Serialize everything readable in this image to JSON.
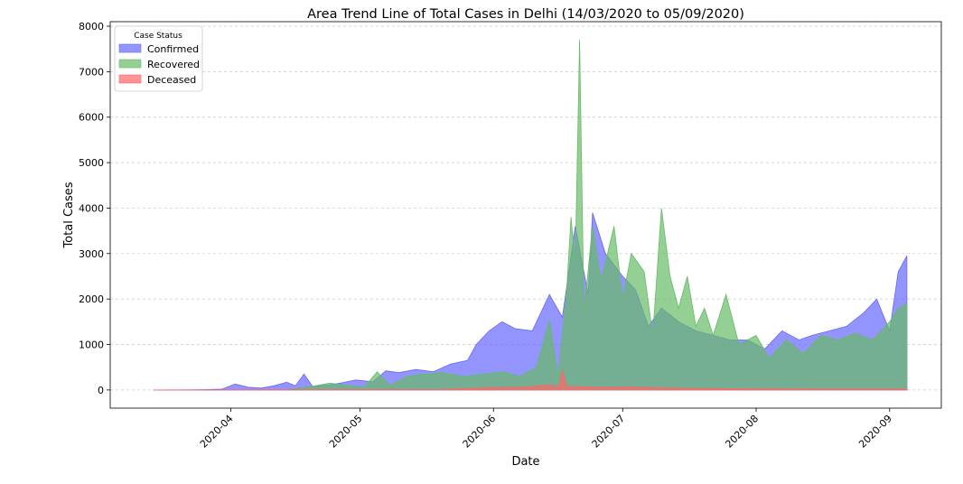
{
  "chart_data": {
    "type": "area",
    "title": "Area Trend Line of Total Cases in Delhi (14/03/2020 to 05/09/2020)",
    "xlabel": "Date",
    "ylabel": "Total Cases",
    "ylim": [
      -400,
      8100
    ],
    "xlim": [
      "2020-03-04",
      "2020-09-13"
    ],
    "y_ticks": [
      0,
      1000,
      2000,
      3000,
      4000,
      5000,
      6000,
      7000,
      8000
    ],
    "x_ticks": [
      "2020-04-01",
      "2020-05-01",
      "2020-06-01",
      "2020-07-01",
      "2020-08-01",
      "2020-09-01"
    ],
    "x_tick_labels": [
      "2020-04",
      "2020-05",
      "2020-06",
      "2020-07",
      "2020-08",
      "2020-09"
    ],
    "grid": "horizontal-dashed",
    "legend": {
      "title": "Case Status",
      "placement": "top-left"
    },
    "series": [
      {
        "name": "Confirmed",
        "color": "#6666ff",
        "points": [
          [
            "2020-03-14",
            0
          ],
          [
            "2020-03-22",
            2
          ],
          [
            "2020-03-26",
            8
          ],
          [
            "2020-03-30",
            20
          ],
          [
            "2020-04-02",
            130
          ],
          [
            "2020-04-05",
            60
          ],
          [
            "2020-04-08",
            40
          ],
          [
            "2020-04-11",
            90
          ],
          [
            "2020-04-14",
            170
          ],
          [
            "2020-04-16",
            90
          ],
          [
            "2020-04-18",
            350
          ],
          [
            "2020-04-20",
            80
          ],
          [
            "2020-04-24",
            110
          ],
          [
            "2020-04-27",
            160
          ],
          [
            "2020-04-30",
            220
          ],
          [
            "2020-05-04",
            180
          ],
          [
            "2020-05-07",
            420
          ],
          [
            "2020-05-10",
            380
          ],
          [
            "2020-05-14",
            450
          ],
          [
            "2020-05-18",
            400
          ],
          [
            "2020-05-22",
            570
          ],
          [
            "2020-05-26",
            650
          ],
          [
            "2020-05-28",
            1000
          ],
          [
            "2020-05-31",
            1300
          ],
          [
            "2020-06-03",
            1500
          ],
          [
            "2020-06-06",
            1350
          ],
          [
            "2020-06-10",
            1300
          ],
          [
            "2020-06-14",
            2100
          ],
          [
            "2020-06-17",
            1600
          ],
          [
            "2020-06-20",
            3600
          ],
          [
            "2020-06-23",
            2100
          ],
          [
            "2020-06-24",
            3900
          ],
          [
            "2020-06-27",
            3000
          ],
          [
            "2020-07-01",
            2500
          ],
          [
            "2020-07-04",
            2200
          ],
          [
            "2020-07-07",
            1400
          ],
          [
            "2020-07-10",
            1800
          ],
          [
            "2020-07-14",
            1500
          ],
          [
            "2020-07-18",
            1300
          ],
          [
            "2020-07-22",
            1200
          ],
          [
            "2020-07-26",
            1100
          ],
          [
            "2020-07-30",
            1100
          ],
          [
            "2020-08-03",
            900
          ],
          [
            "2020-08-07",
            1300
          ],
          [
            "2020-08-11",
            1100
          ],
          [
            "2020-08-14",
            1200
          ],
          [
            "2020-08-18",
            1300
          ],
          [
            "2020-08-22",
            1400
          ],
          [
            "2020-08-26",
            1700
          ],
          [
            "2020-08-29",
            2000
          ],
          [
            "2020-09-01",
            1300
          ],
          [
            "2020-09-03",
            2600
          ],
          [
            "2020-09-05",
            2950
          ]
        ]
      },
      {
        "name": "Recovered",
        "color": "#66bb66",
        "points": [
          [
            "2020-03-14",
            0
          ],
          [
            "2020-04-14",
            0
          ],
          [
            "2020-04-20",
            80
          ],
          [
            "2020-04-24",
            150
          ],
          [
            "2020-04-28",
            100
          ],
          [
            "2020-05-02",
            60
          ],
          [
            "2020-05-05",
            400
          ],
          [
            "2020-05-08",
            100
          ],
          [
            "2020-05-12",
            300
          ],
          [
            "2020-05-16",
            350
          ],
          [
            "2020-05-20",
            380
          ],
          [
            "2020-05-25",
            300
          ],
          [
            "2020-05-30",
            350
          ],
          [
            "2020-06-03",
            400
          ],
          [
            "2020-06-07",
            300
          ],
          [
            "2020-06-11",
            500
          ],
          [
            "2020-06-14",
            1550
          ],
          [
            "2020-06-16",
            300
          ],
          [
            "2020-06-18",
            2200
          ],
          [
            "2020-06-19",
            3800
          ],
          [
            "2020-06-20",
            2800
          ],
          [
            "2020-06-21",
            7700
          ],
          [
            "2020-06-22",
            1700
          ],
          [
            "2020-06-24",
            3600
          ],
          [
            "2020-06-26",
            2400
          ],
          [
            "2020-06-29",
            3600
          ],
          [
            "2020-07-01",
            2000
          ],
          [
            "2020-07-03",
            3000
          ],
          [
            "2020-07-06",
            2600
          ],
          [
            "2020-07-08",
            1200
          ],
          [
            "2020-07-10",
            4000
          ],
          [
            "2020-07-12",
            2500
          ],
          [
            "2020-07-14",
            1800
          ],
          [
            "2020-07-16",
            2500
          ],
          [
            "2020-07-18",
            1400
          ],
          [
            "2020-07-20",
            1800
          ],
          [
            "2020-07-22",
            1200
          ],
          [
            "2020-07-25",
            2100
          ],
          [
            "2020-07-28",
            1000
          ],
          [
            "2020-08-01",
            1200
          ],
          [
            "2020-08-04",
            700
          ],
          [
            "2020-08-08",
            1100
          ],
          [
            "2020-08-12",
            800
          ],
          [
            "2020-08-16",
            1200
          ],
          [
            "2020-08-20",
            1100
          ],
          [
            "2020-08-24",
            1250
          ],
          [
            "2020-08-28",
            1100
          ],
          [
            "2020-09-01",
            1500
          ],
          [
            "2020-09-03",
            1800
          ],
          [
            "2020-09-05",
            1900
          ]
        ]
      },
      {
        "name": "Deceased",
        "color": "#ff6666",
        "points": [
          [
            "2020-03-14",
            0
          ],
          [
            "2020-05-20",
            10
          ],
          [
            "2020-05-31",
            50
          ],
          [
            "2020-06-08",
            60
          ],
          [
            "2020-06-14",
            110
          ],
          [
            "2020-06-16",
            60
          ],
          [
            "2020-06-17",
            430
          ],
          [
            "2020-06-18",
            80
          ],
          [
            "2020-06-24",
            65
          ],
          [
            "2020-07-04",
            60
          ],
          [
            "2020-07-16",
            35
          ],
          [
            "2020-08-01",
            25
          ],
          [
            "2020-08-16",
            20
          ],
          [
            "2020-09-05",
            20
          ]
        ]
      }
    ]
  }
}
